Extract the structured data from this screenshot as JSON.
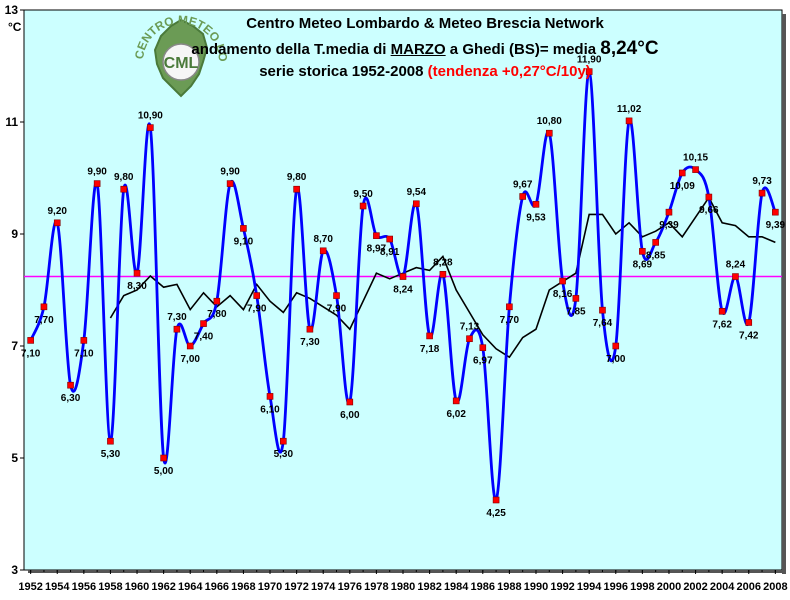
{
  "title": {
    "line1": "Centro Meteo Lombardo & Meteo Brescia Network",
    "line2_prefix": "andamento della T.media di ",
    "line2_month": "MARZO",
    "line2_mid": " a Ghedi (BS)= media ",
    "line2_mean": "8,24°C",
    "line3_prefix": "serie storica 1952-2008 ",
    "line3_trend": "(tendenza +0,27°C/10y)"
  },
  "logo": {
    "text_top": "CENTRO METEO LOMBARDO",
    "text_center": "CML"
  },
  "colors": {
    "plot_bg": "#ccffff",
    "series": "#0000ff",
    "markers": "#ff0000",
    "moving_avg": "#000000",
    "mean_line": "#ff00ff",
    "trend_text": "#ff0000"
  },
  "chart_data": {
    "type": "line",
    "title": "Centro Meteo Lombardo & Meteo Brescia Network",
    "ylabel": "°C",
    "xlabel": "",
    "ylim": [
      3,
      13
    ],
    "yticks": [
      "3",
      "5",
      "7",
      "9",
      "11",
      "13"
    ],
    "xticks": [
      "1952",
      "1954",
      "1956",
      "1958",
      "1960",
      "1962",
      "1964",
      "1966",
      "1968",
      "1970",
      "1972",
      "1974",
      "1976",
      "1978",
      "1980",
      "1982",
      "1984",
      "1986",
      "1988",
      "1990",
      "1992",
      "1994",
      "1996",
      "1998",
      "2000",
      "2002",
      "2004",
      "2006",
      "2008"
    ],
    "mean": 8.24,
    "series": [
      {
        "values": [
          {
            "x": 1952,
            "y": 7.1,
            "label": "7,10"
          },
          {
            "x": 1953,
            "y": 7.7,
            "label": "7,70"
          },
          {
            "x": 1954,
            "y": 9.2,
            "label": "9,20"
          },
          {
            "x": 1955,
            "y": 6.3,
            "label": "6,30"
          },
          {
            "x": 1956,
            "y": 7.1,
            "label": "7,10"
          },
          {
            "x": 1957,
            "y": 9.9,
            "label": "9,90"
          },
          {
            "x": 1958,
            "y": 5.3,
            "label": "5,30"
          },
          {
            "x": 1959,
            "y": 9.8,
            "label": "9,80"
          },
          {
            "x": 1960,
            "y": 8.3,
            "label": "8,30"
          },
          {
            "x": 1961,
            "y": 10.9,
            "label": "10,90"
          },
          {
            "x": 1962,
            "y": 5.0,
            "label": "5,00"
          },
          {
            "x": 1963,
            "y": 7.3,
            "label": "7,30"
          },
          {
            "x": 1964,
            "y": 7.0,
            "label": "7,00"
          },
          {
            "x": 1965,
            "y": 7.4,
            "label": "7,40"
          },
          {
            "x": 1966,
            "y": 7.8,
            "label": "7,80"
          },
          {
            "x": 1967,
            "y": 9.9,
            "label": "9,90"
          },
          {
            "x": 1968,
            "y": 9.1,
            "label": "9,10"
          },
          {
            "x": 1969,
            "y": 7.9,
            "label": "7,90"
          },
          {
            "x": 1970,
            "y": 6.1,
            "label": "6,10"
          },
          {
            "x": 1971,
            "y": 5.3,
            "label": "5,30"
          },
          {
            "x": 1972,
            "y": 9.8,
            "label": "9,80"
          },
          {
            "x": 1973,
            "y": 7.3,
            "label": "7,30"
          },
          {
            "x": 1974,
            "y": 8.7,
            "label": "8,70"
          },
          {
            "x": 1975,
            "y": 7.9,
            "label": "7,90"
          },
          {
            "x": 1976,
            "y": 6.0,
            "label": "6,00"
          },
          {
            "x": 1977,
            "y": 9.5,
            "label": "9,50"
          },
          {
            "x": 1978,
            "y": 8.97,
            "label": "8,97"
          },
          {
            "x": 1979,
            "y": 8.91,
            "label": "8,91"
          },
          {
            "x": 1980,
            "y": 8.24,
            "label": "8,24"
          },
          {
            "x": 1981,
            "y": 9.54,
            "label": "9,54"
          },
          {
            "x": 1982,
            "y": 7.18,
            "label": "7,18"
          },
          {
            "x": 1983,
            "y": 8.28,
            "label": "8,28"
          },
          {
            "x": 1984,
            "y": 6.02,
            "label": "6,02"
          },
          {
            "x": 1985,
            "y": 7.13,
            "label": "7,13"
          },
          {
            "x": 1986,
            "y": 6.97,
            "label": "6,97"
          },
          {
            "x": 1987,
            "y": 4.25,
            "label": "4,25"
          },
          {
            "x": 1988,
            "y": 7.7,
            "label": "7,70"
          },
          {
            "x": 1989,
            "y": 9.67,
            "label": "9,67"
          },
          {
            "x": 1990,
            "y": 9.53,
            "label": "9,53"
          },
          {
            "x": 1991,
            "y": 10.8,
            "label": "10,80"
          },
          {
            "x": 1992,
            "y": 8.16,
            "label": "8,16"
          },
          {
            "x": 1993,
            "y": 7.85,
            "label": "7,85"
          },
          {
            "x": 1994,
            "y": 11.9,
            "label": "11,90"
          },
          {
            "x": 1995,
            "y": 7.64,
            "label": "7,64"
          },
          {
            "x": 1996,
            "y": 7.0,
            "label": "7,00"
          },
          {
            "x": 1997,
            "y": 11.02,
            "label": "11,02"
          },
          {
            "x": 1998,
            "y": 8.69,
            "label": "8,69"
          },
          {
            "x": 1999,
            "y": 8.85,
            "label": "8,85"
          },
          {
            "x": 2000,
            "y": 9.39,
            "label": "9,39"
          },
          {
            "x": 2001,
            "y": 10.09,
            "label": "10,09"
          },
          {
            "x": 2002,
            "y": 10.15,
            "label": "10,15"
          },
          {
            "x": 2003,
            "y": 9.66,
            "label": "9,66"
          },
          {
            "x": 2004,
            "y": 7.62,
            "label": "7,62"
          },
          {
            "x": 2005,
            "y": 8.24,
            "label": "8,24"
          },
          {
            "x": 2006,
            "y": 7.42,
            "label": "7,42"
          },
          {
            "x": 2007,
            "y": 9.73,
            "label": "9,73"
          },
          {
            "x": 2008,
            "y": 9.39,
            "label": "9,39"
          }
        ]
      },
      {
        "kind": "moving-average",
        "values": [
          {
            "x": 1958,
            "y": 7.5
          },
          {
            "x": 1959,
            "y": 7.9
          },
          {
            "x": 1960,
            "y": 8.0
          },
          {
            "x": 1961,
            "y": 8.25
          },
          {
            "x": 1962,
            "y": 8.05
          },
          {
            "x": 1963,
            "y": 8.1
          },
          {
            "x": 1964,
            "y": 7.65
          },
          {
            "x": 1965,
            "y": 7.95
          },
          {
            "x": 1966,
            "y": 7.7
          },
          {
            "x": 1967,
            "y": 7.9
          },
          {
            "x": 1968,
            "y": 7.65
          },
          {
            "x": 1969,
            "y": 8.1
          },
          {
            "x": 1970,
            "y": 7.8
          },
          {
            "x": 1971,
            "y": 7.6
          },
          {
            "x": 1972,
            "y": 7.95
          },
          {
            "x": 1973,
            "y": 7.85
          },
          {
            "x": 1974,
            "y": 7.7
          },
          {
            "x": 1975,
            "y": 7.55
          },
          {
            "x": 1976,
            "y": 7.3
          },
          {
            "x": 1977,
            "y": 7.8
          },
          {
            "x": 1978,
            "y": 8.3
          },
          {
            "x": 1979,
            "y": 8.2
          },
          {
            "x": 1980,
            "y": 8.3
          },
          {
            "x": 1981,
            "y": 8.4
          },
          {
            "x": 1982,
            "y": 8.35
          },
          {
            "x": 1983,
            "y": 8.6
          },
          {
            "x": 1984,
            "y": 8.0
          },
          {
            "x": 1985,
            "y": 7.6
          },
          {
            "x": 1986,
            "y": 7.2
          },
          {
            "x": 1987,
            "y": 6.95
          },
          {
            "x": 1988,
            "y": 6.8
          },
          {
            "x": 1989,
            "y": 7.15
          },
          {
            "x": 1990,
            "y": 7.3
          },
          {
            "x": 1991,
            "y": 8.0
          },
          {
            "x": 1992,
            "y": 8.15
          },
          {
            "x": 1993,
            "y": 8.3
          },
          {
            "x": 1994,
            "y": 9.35
          },
          {
            "x": 1995,
            "y": 9.35
          },
          {
            "x": 1996,
            "y": 9.0
          },
          {
            "x": 1997,
            "y": 9.2
          },
          {
            "x": 1998,
            "y": 8.95
          },
          {
            "x": 1999,
            "y": 9.05
          },
          {
            "x": 2000,
            "y": 9.2
          },
          {
            "x": 2001,
            "y": 8.95
          },
          {
            "x": 2002,
            "y": 9.3
          },
          {
            "x": 2003,
            "y": 9.65
          },
          {
            "x": 2004,
            "y": 9.2
          },
          {
            "x": 2005,
            "y": 9.15
          },
          {
            "x": 2006,
            "y": 8.95
          },
          {
            "x": 2007,
            "y": 8.95
          },
          {
            "x": 2008,
            "y": 8.85
          }
        ]
      }
    ]
  }
}
